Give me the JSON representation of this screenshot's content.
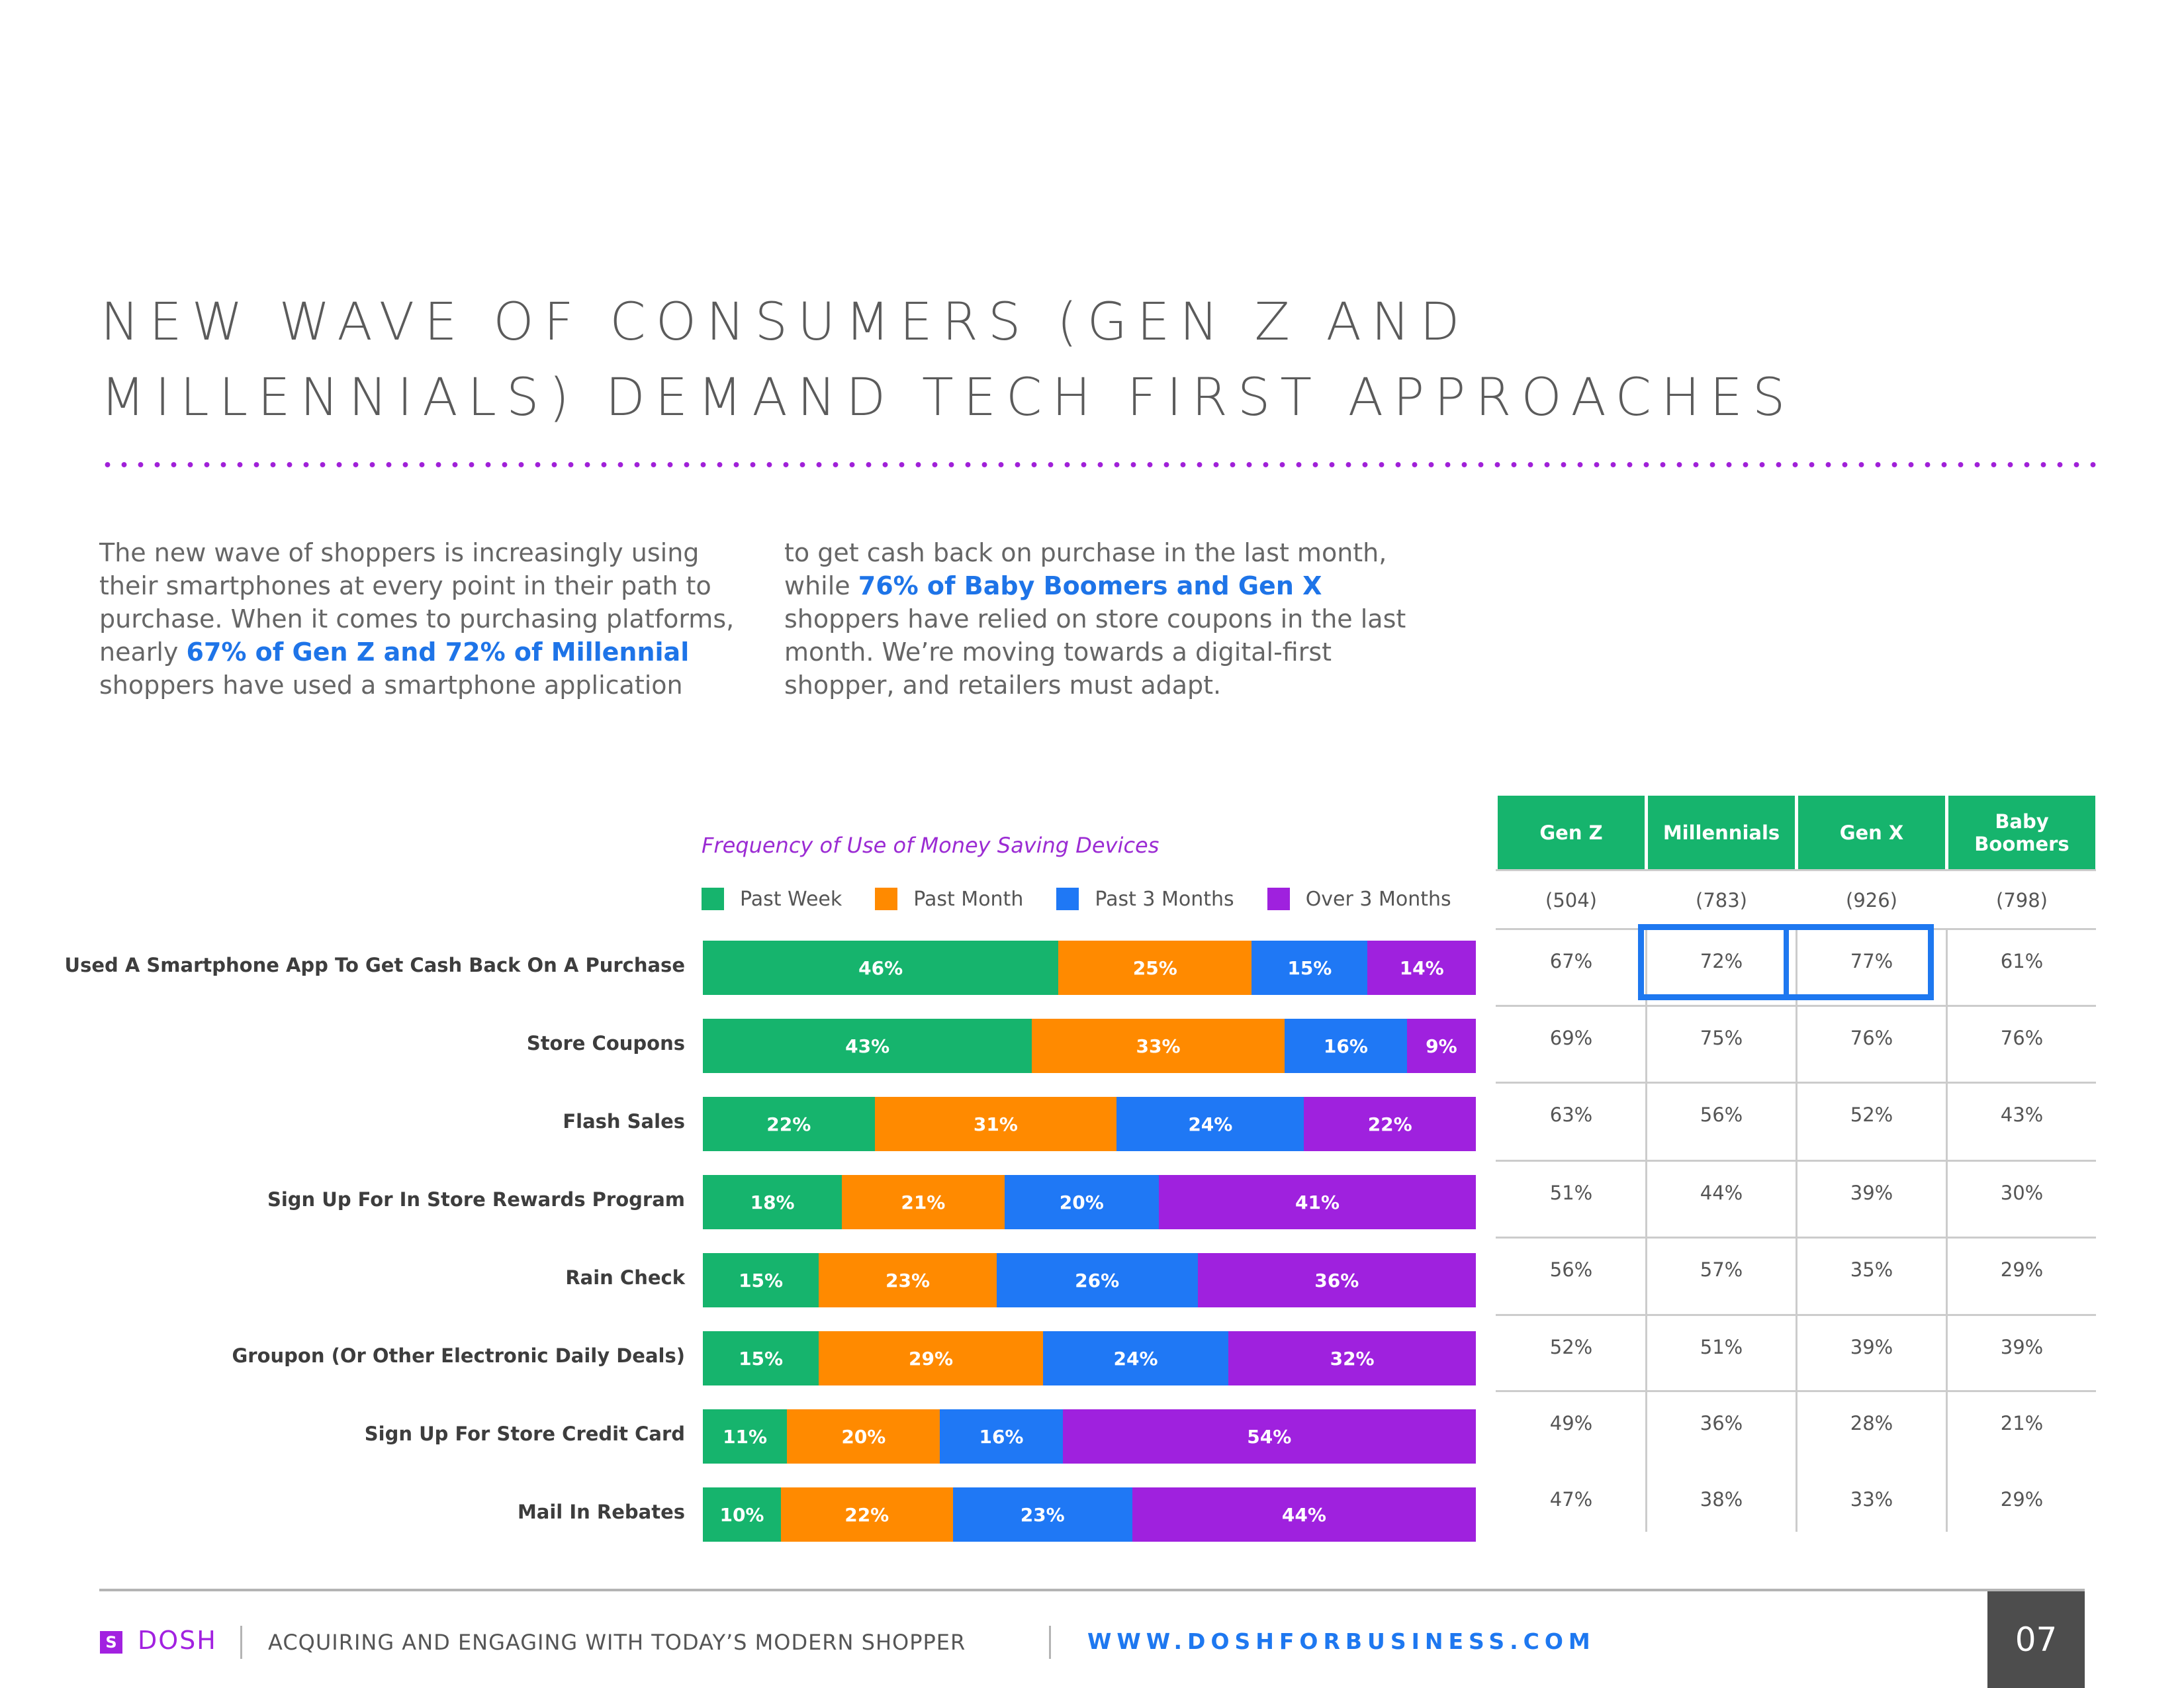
{
  "title": {
    "line1": "NEW WAVE OF CONSUMERS (GEN Z AND",
    "line2": "MILLENNIALS) DEMAND TECH FIRST APPROACHES"
  },
  "intro": {
    "col1_a": "The new wave of shoppers is increasingly using their smartphones at every point in their path to purchase. When it comes to purchasing platforms, nearly ",
    "col1_hl": "67% of Gen Z and 72% of Millennial",
    "col1_b": " shoppers have used a smartphone application",
    "col2_a": "to get cash back on purchase in the last month, while ",
    "col2_hl": "76% of Baby Boomers and Gen X",
    "col2_b": " shoppers have relied on store coupons in the last month. We’re moving towards a digital-first shopper, and retailers must adapt."
  },
  "chart_data": {
    "type": "bar",
    "orientation": "horizontal",
    "stacked": true,
    "title": "Frequency of Use of Money Saving Devices",
    "categories": [
      "Used A Smartphone App To Get Cash Back On A Purchase",
      "Store Coupons",
      "Flash Sales",
      "Sign Up For In Store Rewards Program",
      "Rain Check",
      "Groupon (Or Other Electronic Daily Deals)",
      "Sign Up For Store Credit Card",
      "Mail In Rebates"
    ],
    "series": [
      {
        "name": "Past Week",
        "color": "#16b46d",
        "values": [
          46,
          43,
          22,
          18,
          15,
          15,
          11,
          10
        ]
      },
      {
        "name": "Past Month",
        "color": "#ff8a00",
        "values": [
          25,
          33,
          31,
          21,
          23,
          29,
          20,
          22
        ]
      },
      {
        "name": "Past 3 Months",
        "color": "#1f78f5",
        "values": [
          15,
          16,
          24,
          20,
          26,
          24,
          16,
          23
        ]
      },
      {
        "name": "Over 3 Months",
        "color": "#9f21de",
        "values": [
          14,
          9,
          22,
          41,
          36,
          32,
          54,
          44
        ]
      }
    ],
    "value_suffix": "%"
  },
  "table": {
    "headers": [
      "Gen Z",
      "Millennials",
      "Gen X",
      "Baby Boomers"
    ],
    "counts": [
      "(504)",
      "(783)",
      "(926)",
      "(798)"
    ],
    "rows": [
      [
        "67%",
        "72%",
        "77%",
        "61%"
      ],
      [
        "69%",
        "75%",
        "76%",
        "76%"
      ],
      [
        "63%",
        "56%",
        "52%",
        "43%"
      ],
      [
        "51%",
        "44%",
        "39%",
        "30%"
      ],
      [
        "56%",
        "57%",
        "35%",
        "29%"
      ],
      [
        "52%",
        "51%",
        "39%",
        "39%"
      ],
      [
        "49%",
        "36%",
        "28%",
        "21%"
      ],
      [
        "47%",
        "38%",
        "33%",
        "29%"
      ]
    ],
    "header_color": "#16b46d",
    "highlight_color": "#1e78f0"
  },
  "footer": {
    "logo_glyph": "S",
    "logo_text": "DOSH",
    "subtitle": "ACQUIRING AND ENGAGING WITH TODAY’S MODERN SHOPPER",
    "url": "WWW.DOSHFORBUSINESS.COM",
    "page": "07"
  }
}
